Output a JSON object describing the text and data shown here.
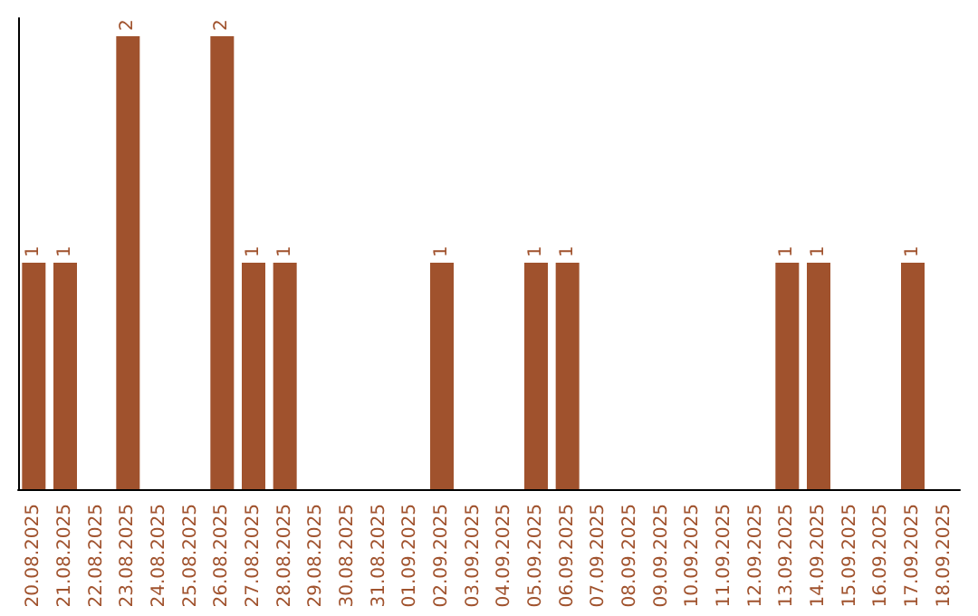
{
  "chart_data": {
    "type": "bar",
    "categories": [
      "20.08.2025",
      "21.08.2025",
      "22.08.2025",
      "23.08.2025",
      "24.08.2025",
      "25.08.2025",
      "26.08.2025",
      "27.08.2025",
      "28.08.2025",
      "29.08.2025",
      "30.08.2025",
      "31.08.2025",
      "01.09.2025",
      "02.09.2025",
      "03.09.2025",
      "04.09.2025",
      "05.09.2025",
      "06.09.2025",
      "07.09.2025",
      "08.09.2025",
      "09.09.2025",
      "10.09.2025",
      "11.09.2025",
      "12.09.2025",
      "13.09.2025",
      "14.09.2025",
      "15.09.2025",
      "16.09.2025",
      "17.09.2025",
      "18.09.2025"
    ],
    "values": [
      1,
      1,
      0,
      2,
      0,
      0,
      2,
      1,
      1,
      0,
      0,
      0,
      0,
      1,
      0,
      0,
      1,
      1,
      0,
      0,
      0,
      0,
      0,
      0,
      1,
      1,
      0,
      0,
      1,
      0
    ],
    "value_labels": [
      "1",
      "1",
      null,
      "2",
      null,
      null,
      "2",
      "1",
      "1",
      null,
      null,
      null,
      null,
      "1",
      null,
      null,
      "1",
      "1",
      null,
      null,
      null,
      null,
      null,
      null,
      "1",
      "1",
      null,
      null,
      "1",
      null
    ],
    "color": "#a0522d",
    "ylim": [
      0,
      2.08
    ]
  }
}
